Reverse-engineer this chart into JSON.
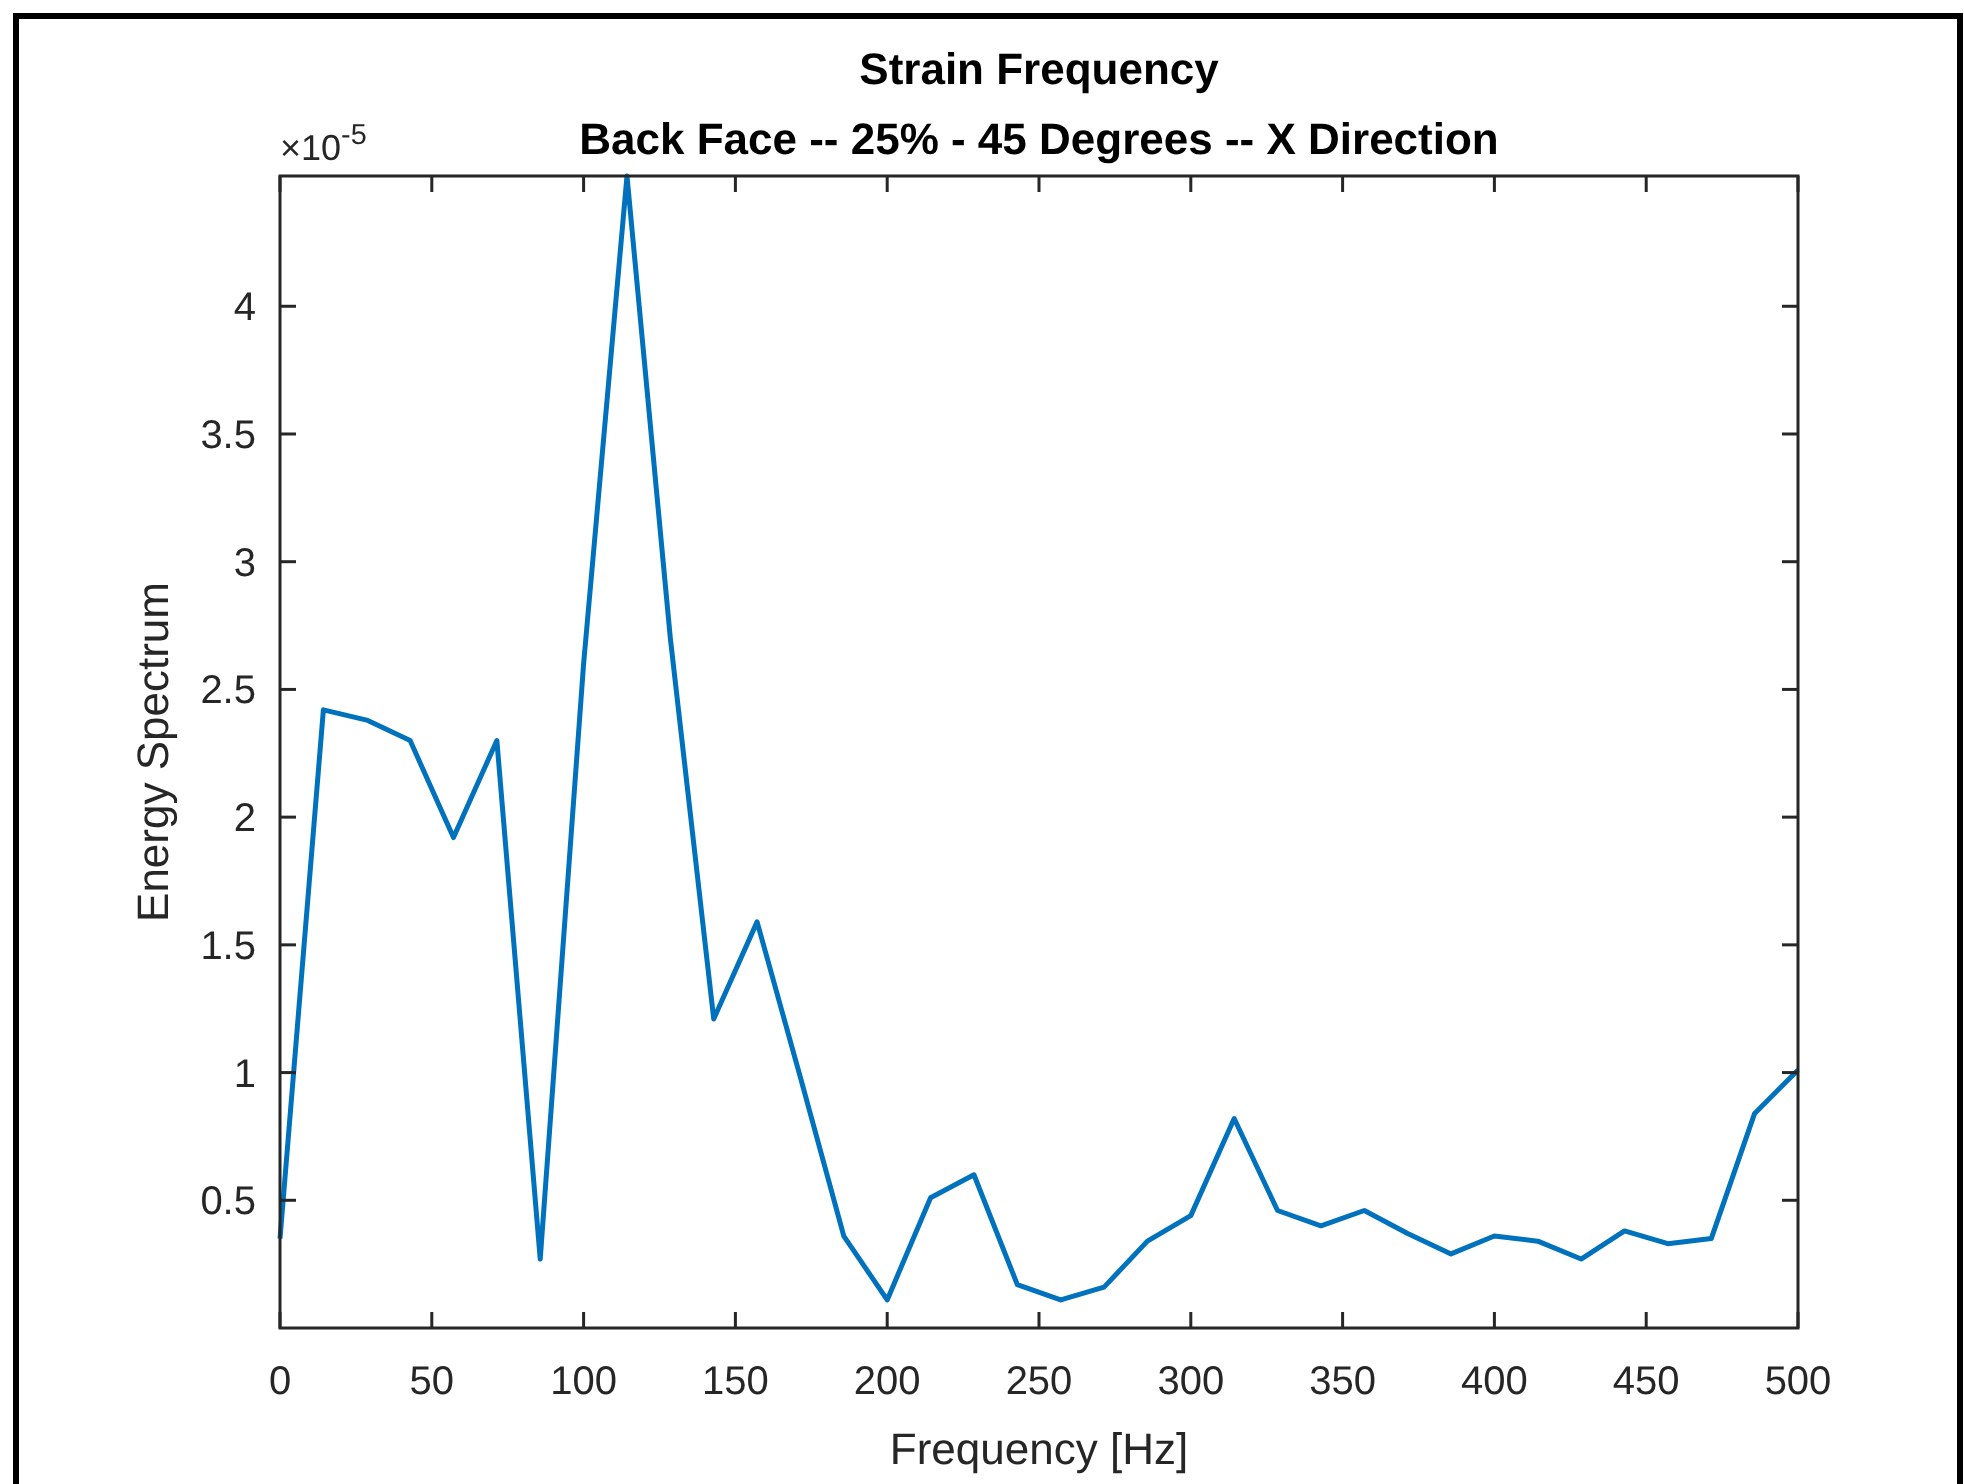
{
  "chart_data": {
    "type": "line",
    "title": "Strain Frequency",
    "subtitle": "Back Face -- 25% - 45 Degrees -- X Direction",
    "xlabel": "Frequency [Hz]",
    "ylabel": "Energy Spectrum",
    "annotations": [
      "×10$^{-5}$"
    ],
    "x": [
      0,
      14.29,
      28.57,
      42.86,
      57.14,
      71.43,
      85.71,
      100,
      114.29,
      128.57,
      142.86,
      157.14,
      171.43,
      185.71,
      200,
      214.29,
      228.57,
      242.86,
      257.14,
      271.43,
      285.71,
      300,
      314.29,
      328.57,
      342.86,
      357.14,
      371.43,
      385.71,
      400,
      414.29,
      428.57,
      442.86,
      457.14,
      471.43,
      485.71,
      500
    ],
    "series": [
      {
        "color": "#0072bd",
        "values": [
          0.35,
          2.42,
          2.38,
          2.3,
          1.92,
          2.3,
          0.27,
          2.6,
          4.51,
          2.7,
          1.21,
          1.59,
          0.98,
          0.36,
          0.11,
          0.51,
          0.6,
          0.17,
          0.11,
          0.16,
          0.34,
          0.44,
          0.82,
          0.46,
          0.4,
          0.46,
          0.37,
          0.29,
          0.36,
          0.34,
          0.27,
          0.38,
          0.33,
          0.35,
          0.84,
          1.01
        ]
      }
    ],
    "xlim": [
      0,
      500
    ],
    "ylim": [
      0,
      4.51
    ],
    "xticks": [
      0,
      50,
      100,
      150,
      200,
      250,
      300,
      350,
      400,
      450,
      500
    ],
    "yticks": [
      0.5,
      1,
      1.5,
      2,
      2.5,
      3,
      3.5,
      4
    ],
    "line_style": "solid",
    "marker": "none"
  }
}
